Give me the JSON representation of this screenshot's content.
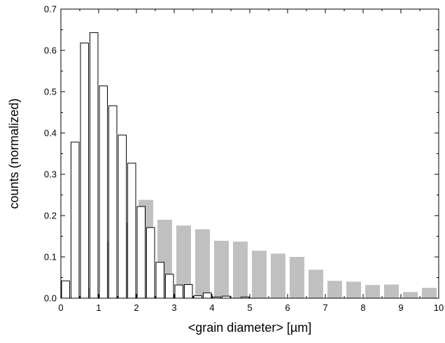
{
  "chart_data": {
    "type": "bar",
    "xlabel": "<grain diameter> [µm]",
    "ylabel": "counts (normalized)",
    "xlim": [
      0,
      10
    ],
    "ylim": [
      0,
      0.7
    ],
    "x_ticks": [
      "0",
      "1",
      "2",
      "3",
      "4",
      "5",
      "6",
      "7",
      "8",
      "9",
      "10"
    ],
    "y_ticks": [
      "0.0",
      "0.1",
      "0.2",
      "0.3",
      "0.4",
      "0.5",
      "0.6",
      "0.7"
    ],
    "grid": false,
    "legend": "none",
    "series": [
      {
        "style": "filled",
        "color": "#c0c0c0",
        "bin_width": 0.5,
        "x": [
          0.25,
          0.75,
          1.25,
          1.75,
          2.25,
          2.75,
          3.25,
          3.75,
          4.25,
          4.75,
          5.25,
          5.75,
          6.25,
          6.75,
          7.25,
          7.75,
          8.25,
          8.75,
          9.25,
          9.75
        ],
        "values": [
          0.002,
          0.025,
          0.138,
          0.183,
          0.238,
          0.19,
          0.176,
          0.167,
          0.139,
          0.137,
          0.115,
          0.108,
          0.1,
          0.069,
          0.042,
          0.04,
          0.032,
          0.033,
          0.015,
          0.025
        ]
      },
      {
        "style": "outline",
        "color": "#000000",
        "bin_width": 0.25,
        "x": [
          0.125,
          0.375,
          0.625,
          0.875,
          1.125,
          1.375,
          1.625,
          1.875,
          2.125,
          2.375,
          2.625,
          2.875,
          3.125,
          3.375,
          3.625,
          3.875,
          4.125,
          4.375,
          4.625,
          4.875,
          5.125
        ],
        "values": [
          0.042,
          0.378,
          0.618,
          0.643,
          0.514,
          0.466,
          0.395,
          0.327,
          0.222,
          0.171,
          0.087,
          0.058,
          0.032,
          0.033,
          0.006,
          0.013,
          0.003,
          0.005,
          0.0,
          0.003,
          0.0
        ]
      }
    ]
  }
}
